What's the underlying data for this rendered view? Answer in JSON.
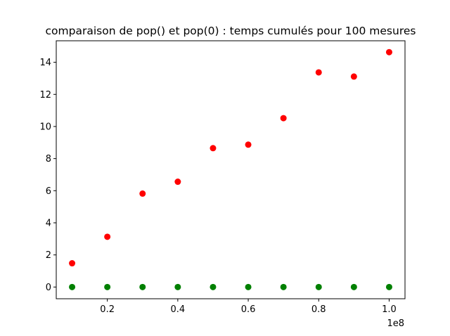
{
  "chart_data": {
    "type": "scatter",
    "title": "comparaison de pop() et pop(0) : temps cumulés pour 100 mesures",
    "xlabel": "",
    "ylabel": "",
    "x_offset_text": "1e8",
    "x": [
      10000000,
      20000000,
      30000000,
      40000000,
      50000000,
      60000000,
      70000000,
      80000000,
      90000000,
      100000000
    ],
    "xlim": [
      5500000,
      104500000
    ],
    "ylim": [
      -0.73,
      15.34
    ],
    "x_ticks": [
      20000000,
      40000000,
      60000000,
      80000000,
      100000000
    ],
    "x_tick_labels": [
      "0.2",
      "0.4",
      "0.6",
      "0.8",
      "1.0"
    ],
    "y_ticks": [
      0,
      2,
      4,
      6,
      8,
      10,
      12,
      14
    ],
    "y_tick_labels": [
      "0",
      "2",
      "4",
      "6",
      "8",
      "10",
      "12",
      "14"
    ],
    "grid": false,
    "series": [
      {
        "color": "#ff0000",
        "values": [
          1.48,
          3.13,
          5.82,
          6.56,
          8.65,
          8.87,
          10.52,
          13.37,
          13.11,
          14.63
        ]
      },
      {
        "color": "#008000",
        "values": [
          0,
          0,
          0,
          0,
          0,
          0,
          0,
          0,
          0,
          0
        ]
      }
    ]
  }
}
